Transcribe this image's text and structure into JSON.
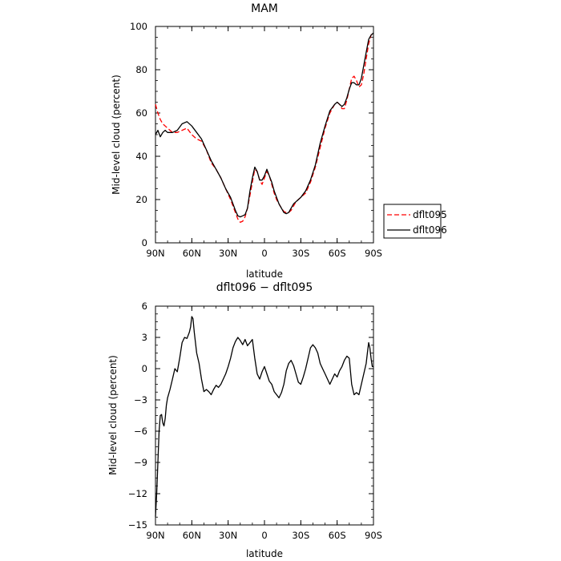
{
  "chart_data": [
    {
      "type": "line",
      "title": "MAM",
      "xlabel": "latitude",
      "ylabel": "Mid-level cloud (percent)",
      "xlim": [
        90,
        -90
      ],
      "ylim": [
        0,
        100
      ],
      "x_ticks": [
        90,
        60,
        30,
        0,
        -30,
        -60,
        -90
      ],
      "x_tick_labels": [
        "90N",
        "60N",
        "30N",
        "0",
        "30S",
        "60S",
        "90S"
      ],
      "y_ticks": [
        0,
        20,
        40,
        60,
        80,
        100
      ],
      "y_tick_labels": [
        "0",
        "20",
        "40",
        "60",
        "80",
        "100"
      ],
      "legend": "outside-right",
      "series": [
        {
          "name": "dflt095",
          "color": "#ff0000",
          "dash": "dashed",
          "x": [
            90,
            88,
            86,
            84,
            82,
            80,
            76,
            72,
            68,
            64,
            60,
            56,
            52,
            48,
            44,
            40,
            36,
            32,
            28,
            24,
            22,
            20,
            18,
            16,
            14,
            12,
            10,
            8,
            6,
            4,
            2,
            0,
            -2,
            -4,
            -6,
            -8,
            -10,
            -12,
            -14,
            -16,
            -18,
            -20,
            -22,
            -24,
            -26,
            -28,
            -30,
            -34,
            -38,
            -42,
            -46,
            -50,
            -54,
            -58,
            -60,
            -62,
            -64,
            -66,
            -68,
            -70,
            -72,
            -74,
            -76,
            -78,
            -80,
            -82,
            -84,
            -86,
            -88,
            -90
          ],
          "values": [
            64,
            60,
            57,
            55,
            54,
            53,
            51,
            51,
            52,
            53,
            50,
            48,
            47,
            43,
            37,
            34,
            30,
            25,
            20,
            14,
            11,
            9.5,
            10,
            12,
            16,
            22,
            28,
            34,
            33,
            29,
            27,
            30,
            33,
            31,
            27,
            23,
            20,
            18,
            16,
            14.5,
            14,
            14,
            15,
            17,
            19,
            20,
            21,
            23,
            28,
            35,
            44,
            53,
            60,
            64,
            65,
            64,
            62,
            62,
            66,
            71,
            76,
            77,
            75,
            72,
            73,
            78,
            85,
            92,
            96,
            97
          ]
        },
        {
          "name": "dflt096",
          "color": "#000000",
          "dash": "solid",
          "x": [
            90,
            88,
            86,
            84,
            82,
            80,
            76,
            72,
            68,
            64,
            60,
            56,
            52,
            48,
            44,
            40,
            36,
            32,
            28,
            24,
            22,
            20,
            18,
            16,
            14,
            12,
            10,
            8,
            6,
            4,
            2,
            0,
            -2,
            -4,
            -6,
            -8,
            -10,
            -12,
            -14,
            -16,
            -18,
            -20,
            -22,
            -24,
            -26,
            -28,
            -30,
            -34,
            -38,
            -42,
            -46,
            -50,
            -54,
            -58,
            -60,
            -62,
            -64,
            -66,
            -68,
            -70,
            -72,
            -74,
            -76,
            -78,
            -80,
            -82,
            -84,
            -86,
            -88,
            -90
          ],
          "values": [
            50,
            52,
            49,
            51,
            52,
            51,
            51,
            52,
            55,
            56,
            54,
            51,
            48,
            43,
            38,
            34,
            30,
            25,
            21,
            15,
            12.5,
            12,
            12.5,
            13,
            16,
            24,
            30,
            35,
            33,
            29,
            29,
            31,
            34,
            31,
            28,
            24,
            21,
            18,
            16,
            14,
            13.5,
            14,
            16,
            18,
            19,
            20,
            21,
            24,
            29,
            36,
            46,
            54,
            61,
            64,
            65,
            64,
            63,
            64,
            67,
            71,
            74,
            74,
            73,
            73,
            76,
            82,
            88,
            94,
            96,
            97
          ]
        }
      ]
    },
    {
      "type": "line",
      "title": "dflt096 − dflt095",
      "xlabel": "latitude",
      "ylabel": "Mid-level cloud (percent)",
      "xlim": [
        90,
        -90
      ],
      "ylim": [
        -15,
        6
      ],
      "x_ticks": [
        90,
        60,
        30,
        0,
        -30,
        -60,
        -90
      ],
      "x_tick_labels": [
        "90N",
        "60N",
        "30N",
        "0",
        "30S",
        "60S",
        "90S"
      ],
      "y_ticks": [
        6,
        3,
        0,
        -3,
        -6,
        -9,
        -12,
        -15
      ],
      "y_tick_labels": [
        "6",
        "3",
        "0",
        "−3",
        "−6",
        "−9",
        "−12",
        "−15"
      ],
      "series": [
        {
          "color": "#000000",
          "x": [
            90,
            89,
            88,
            87,
            86,
            85,
            84,
            83,
            82,
            81,
            80,
            78,
            76,
            74,
            72,
            70,
            68,
            66,
            64,
            62,
            61,
            60,
            59,
            58,
            56,
            54,
            52,
            50,
            48,
            46,
            44,
            42,
            40,
            38,
            36,
            34,
            32,
            30,
            28,
            26,
            24,
            22,
            20,
            18,
            16,
            14,
            12,
            10,
            8,
            6,
            4,
            2,
            0,
            -2,
            -4,
            -6,
            -8,
            -10,
            -12,
            -14,
            -16,
            -18,
            -20,
            -22,
            -24,
            -26,
            -28,
            -30,
            -32,
            -34,
            -36,
            -38,
            -40,
            -42,
            -44,
            -46,
            -48,
            -50,
            -52,
            -54,
            -56,
            -58,
            -60,
            -62,
            -64,
            -66,
            -68,
            -70,
            -72,
            -74,
            -76,
            -78,
            -80,
            -82,
            -84,
            -85,
            -86,
            -87,
            -88,
            -89,
            -90
          ],
          "values": [
            -14.2,
            -12,
            -9,
            -6,
            -4.5,
            -4.4,
            -5.2,
            -5.5,
            -4.8,
            -3.5,
            -2.8,
            -2,
            -1,
            0,
            -0.3,
            1,
            2.5,
            3.0,
            2.9,
            3.5,
            4.0,
            5.0,
            4.8,
            3.5,
            1.5,
            0.5,
            -1,
            -2.2,
            -2.0,
            -2.2,
            -2.5,
            -2.0,
            -1.6,
            -1.8,
            -1.5,
            -1.0,
            -0.5,
            0.2,
            1.0,
            2.0,
            2.6,
            3.0,
            2.7,
            2.3,
            2.8,
            2.2,
            2.5,
            2.8,
            1.0,
            -0.5,
            -1.0,
            -0.3,
            0.2,
            -0.5,
            -1.2,
            -1.5,
            -2.2,
            -2.5,
            -2.8,
            -2.3,
            -1.5,
            -0.2,
            0.5,
            0.8,
            0.3,
            -0.5,
            -1.3,
            -1.5,
            -0.8,
            0,
            1,
            2,
            2.3,
            2.0,
            1.5,
            0.5,
            0,
            -0.5,
            -1.0,
            -1.5,
            -1.0,
            -0.5,
            -0.8,
            -0.2,
            0.2,
            0.8,
            1.2,
            1.0,
            -1.5,
            -2.5,
            -2.3,
            -2.5,
            -1.5,
            -0.5,
            0.5,
            1.5,
            2.5,
            2.0,
            1.0,
            0.2,
            0.2
          ]
        }
      ]
    }
  ]
}
